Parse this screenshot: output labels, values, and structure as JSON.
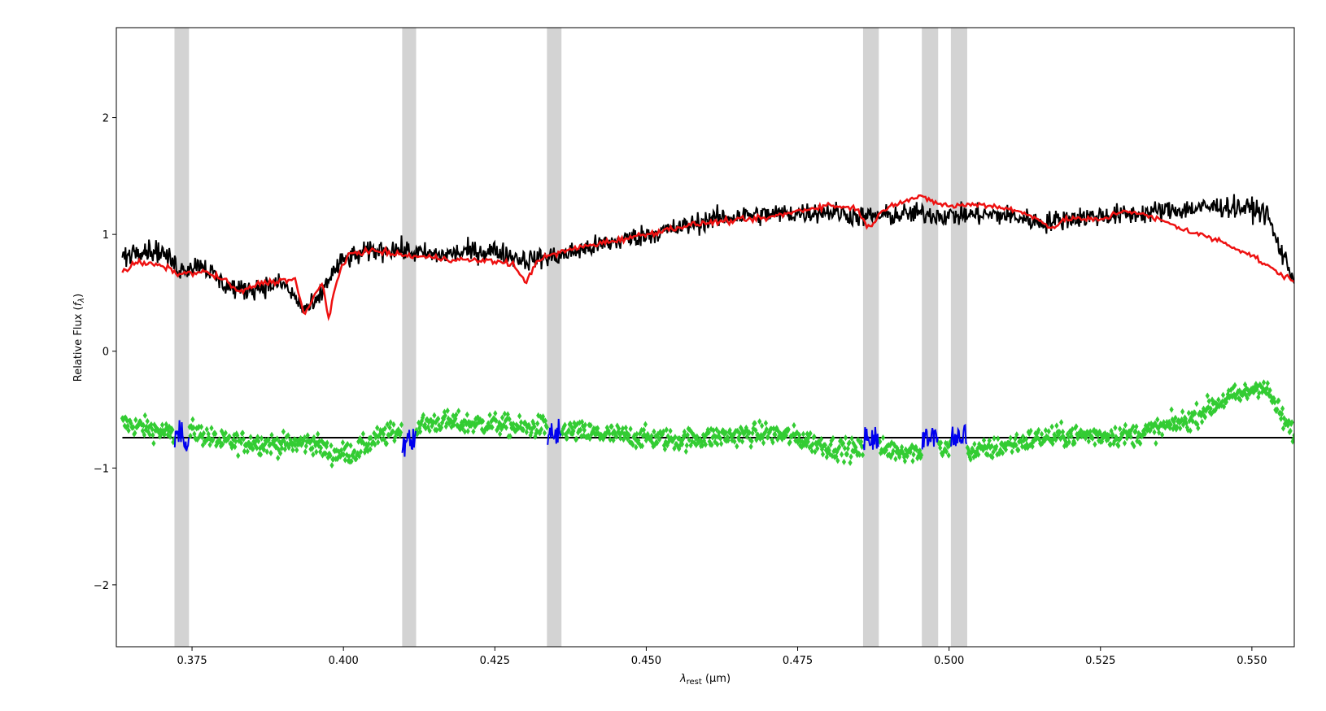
{
  "chart_data": {
    "type": "line",
    "xlabel": "λrest (μm)",
    "xlabel_main": "λ",
    "xlabel_sub": "rest",
    "xlabel_unit": " (μm)",
    "ylabel": "Relative Flux (fλ)",
    "ylabel_main": "Relative Flux (",
    "ylabel_f": "f",
    "ylabel_sub": "λ",
    "ylabel_end": ")",
    "xlim": [
      0.3625,
      0.557
    ],
    "ylim": [
      -2.53,
      2.77
    ],
    "x_ticks": [
      0.375,
      0.4,
      0.425,
      0.45,
      0.475,
      0.5,
      0.525,
      0.55
    ],
    "x_tick_labels": [
      "0.375",
      "0.400",
      "0.425",
      "0.450",
      "0.475",
      "0.500",
      "0.525",
      "0.550"
    ],
    "y_ticks": [
      2,
      1,
      0,
      -1,
      -2
    ],
    "y_tick_labels": [
      "2",
      "1",
      "0",
      "−1",
      "−2"
    ],
    "grid": false,
    "legend": "none",
    "masked_regions": [
      [
        0.3721,
        0.3745
      ],
      [
        0.4097,
        0.412
      ],
      [
        0.4336,
        0.436
      ],
      [
        0.4858,
        0.4884
      ],
      [
        0.4955,
        0.4982
      ],
      [
        0.5003,
        0.503
      ]
    ],
    "residual_baseline": -0.74,
    "series": [
      {
        "role": "observed",
        "color": "#000000",
        "keypoints": [
          [
            0.3635,
            0.8
          ],
          [
            0.366,
            0.88
          ],
          [
            0.37,
            0.85
          ],
          [
            0.373,
            0.7
          ],
          [
            0.3765,
            0.75
          ],
          [
            0.38,
            0.58
          ],
          [
            0.383,
            0.52
          ],
          [
            0.386,
            0.55
          ],
          [
            0.39,
            0.58
          ],
          [
            0.3935,
            0.36
          ],
          [
            0.3955,
            0.4
          ],
          [
            0.3975,
            0.62
          ],
          [
            0.4,
            0.78
          ],
          [
            0.404,
            0.85
          ],
          [
            0.408,
            0.88
          ],
          [
            0.412,
            0.84
          ],
          [
            0.416,
            0.82
          ],
          [
            0.42,
            0.85
          ],
          [
            0.425,
            0.86
          ],
          [
            0.43,
            0.78
          ],
          [
            0.433,
            0.8
          ],
          [
            0.436,
            0.82
          ],
          [
            0.44,
            0.88
          ],
          [
            0.445,
            0.94
          ],
          [
            0.45,
            1.0
          ],
          [
            0.455,
            1.05
          ],
          [
            0.46,
            1.12
          ],
          [
            0.465,
            1.16
          ],
          [
            0.47,
            1.17
          ],
          [
            0.475,
            1.18
          ],
          [
            0.48,
            1.2
          ],
          [
            0.4855,
            1.15
          ],
          [
            0.49,
            1.16
          ],
          [
            0.495,
            1.18
          ],
          [
            0.5,
            1.16
          ],
          [
            0.505,
            1.17
          ],
          [
            0.51,
            1.16
          ],
          [
            0.5155,
            1.1
          ],
          [
            0.52,
            1.14
          ],
          [
            0.525,
            1.16
          ],
          [
            0.53,
            1.17
          ],
          [
            0.535,
            1.2
          ],
          [
            0.54,
            1.22
          ],
          [
            0.545,
            1.24
          ],
          [
            0.55,
            1.22
          ],
          [
            0.5525,
            1.18
          ],
          [
            0.554,
            0.95
          ],
          [
            0.5555,
            0.78
          ],
          [
            0.557,
            0.62
          ]
        ],
        "noise": 0.09
      },
      {
        "role": "model",
        "color": "#ee1111",
        "keypoints": [
          [
            0.3635,
            0.68
          ],
          [
            0.366,
            0.76
          ],
          [
            0.37,
            0.73
          ],
          [
            0.373,
            0.66
          ],
          [
            0.377,
            0.68
          ],
          [
            0.38,
            0.62
          ],
          [
            0.383,
            0.5
          ],
          [
            0.386,
            0.58
          ],
          [
            0.389,
            0.6
          ],
          [
            0.392,
            0.62
          ],
          [
            0.3935,
            0.3
          ],
          [
            0.395,
            0.45
          ],
          [
            0.3965,
            0.6
          ],
          [
            0.3975,
            0.28
          ],
          [
            0.399,
            0.62
          ],
          [
            0.401,
            0.84
          ],
          [
            0.405,
            0.86
          ],
          [
            0.41,
            0.82
          ],
          [
            0.415,
            0.8
          ],
          [
            0.42,
            0.78
          ],
          [
            0.425,
            0.77
          ],
          [
            0.428,
            0.75
          ],
          [
            0.43,
            0.58
          ],
          [
            0.432,
            0.78
          ],
          [
            0.436,
            0.85
          ],
          [
            0.44,
            0.9
          ],
          [
            0.445,
            0.95
          ],
          [
            0.45,
            1.0
          ],
          [
            0.455,
            1.06
          ],
          [
            0.46,
            1.1
          ],
          [
            0.465,
            1.12
          ],
          [
            0.47,
            1.14
          ],
          [
            0.475,
            1.2
          ],
          [
            0.48,
            1.25
          ],
          [
            0.485,
            1.22
          ],
          [
            0.4865,
            1.05
          ],
          [
            0.49,
            1.25
          ],
          [
            0.495,
            1.32
          ],
          [
            0.5,
            1.24
          ],
          [
            0.505,
            1.26
          ],
          [
            0.51,
            1.22
          ],
          [
            0.5155,
            1.12
          ],
          [
            0.5165,
            1.05
          ],
          [
            0.52,
            1.14
          ],
          [
            0.525,
            1.12
          ],
          [
            0.5285,
            1.2
          ],
          [
            0.53,
            1.2
          ],
          [
            0.535,
            1.12
          ],
          [
            0.54,
            1.02
          ],
          [
            0.545,
            0.94
          ],
          [
            0.55,
            0.82
          ],
          [
            0.554,
            0.68
          ],
          [
            0.557,
            0.6
          ]
        ],
        "noise": 0.025
      },
      {
        "role": "residuals",
        "color": "#33cc33",
        "marker": "diamond",
        "keypoints": [
          [
            0.3635,
            -0.62
          ],
          [
            0.368,
            -0.66
          ],
          [
            0.372,
            -0.72
          ],
          [
            0.375,
            -0.68
          ],
          [
            0.38,
            -0.78
          ],
          [
            0.385,
            -0.78
          ],
          [
            0.39,
            -0.8
          ],
          [
            0.395,
            -0.78
          ],
          [
            0.398,
            -0.88
          ],
          [
            0.402,
            -0.86
          ],
          [
            0.405,
            -0.76
          ],
          [
            0.408,
            -0.7
          ],
          [
            0.412,
            -0.64
          ],
          [
            0.416,
            -0.6
          ],
          [
            0.42,
            -0.62
          ],
          [
            0.425,
            -0.62
          ],
          [
            0.43,
            -0.66
          ],
          [
            0.433,
            -0.64
          ],
          [
            0.437,
            -0.68
          ],
          [
            0.44,
            -0.7
          ],
          [
            0.445,
            -0.72
          ],
          [
            0.45,
            -0.74
          ],
          [
            0.455,
            -0.76
          ],
          [
            0.46,
            -0.74
          ],
          [
            0.465,
            -0.72
          ],
          [
            0.47,
            -0.7
          ],
          [
            0.475,
            -0.74
          ],
          [
            0.48,
            -0.82
          ],
          [
            0.485,
            -0.85
          ],
          [
            0.49,
            -0.84
          ],
          [
            0.495,
            -0.86
          ],
          [
            0.5,
            -0.84
          ],
          [
            0.505,
            -0.86
          ],
          [
            0.51,
            -0.8
          ],
          [
            0.515,
            -0.74
          ],
          [
            0.52,
            -0.72
          ],
          [
            0.525,
            -0.72
          ],
          [
            0.53,
            -0.72
          ],
          [
            0.535,
            -0.66
          ],
          [
            0.54,
            -0.58
          ],
          [
            0.543,
            -0.48
          ],
          [
            0.546,
            -0.4
          ],
          [
            0.549,
            -0.36
          ],
          [
            0.5515,
            -0.28
          ],
          [
            0.553,
            -0.38
          ],
          [
            0.5545,
            -0.52
          ],
          [
            0.556,
            -0.66
          ],
          [
            0.557,
            -0.7
          ]
        ],
        "noise": 0.09
      },
      {
        "role": "masked-residuals",
        "color": "#0000ee"
      }
    ]
  }
}
